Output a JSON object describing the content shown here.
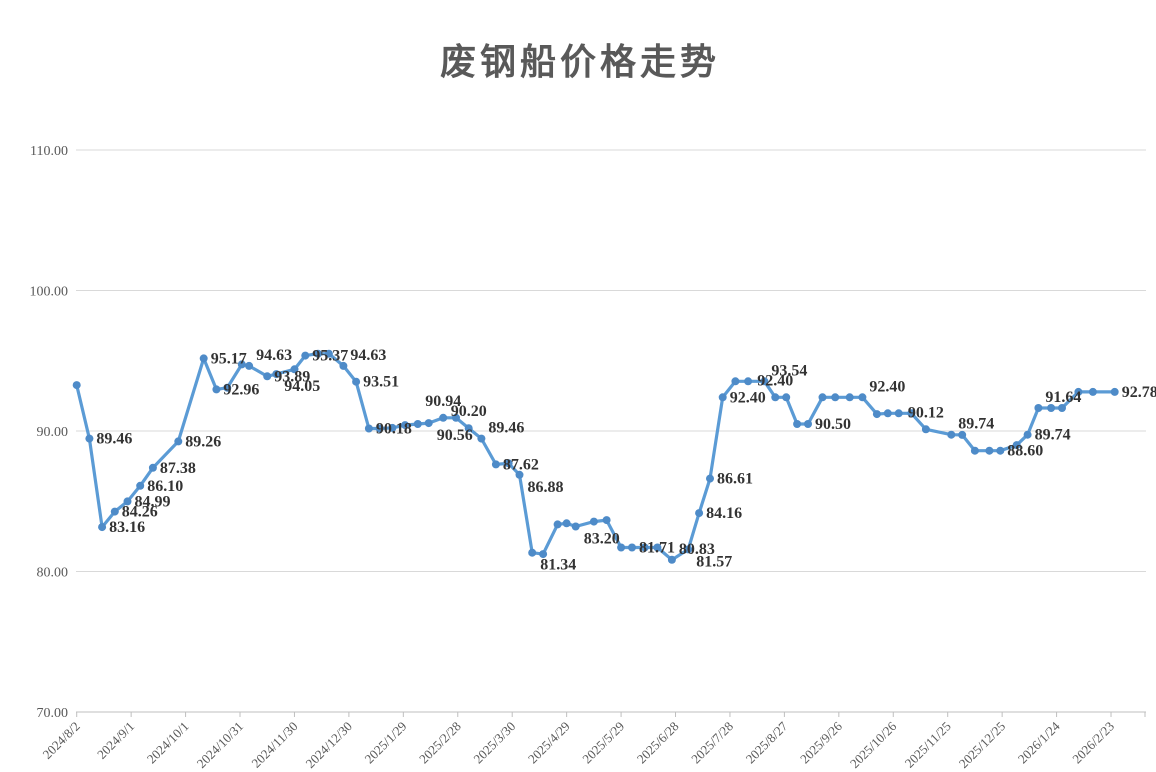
{
  "chart_data": {
    "type": "line",
    "title": "废钢船价格走势",
    "colors": {
      "line": "#5B9BD5",
      "marker": "#4E8BC8",
      "data_label": "#333333",
      "grid": "#D9D9D9",
      "axis_line": "#BFBFBF",
      "axis_text": "#595959",
      "title_text": "#595959"
    },
    "y_axis": {
      "min": 70,
      "max": 110,
      "step": 10,
      "tick_labels": [
        "110.00",
        "100.00",
        "90.00",
        "80.00",
        "70.00"
      ],
      "grid": true
    },
    "x_axis": {
      "tick_interval_days": 30,
      "tick_labels": [
        "2024/8/2",
        "2024/9/1",
        "2024/10/1",
        "2024/10/31",
        "2024/11/30",
        "2024/12/30",
        "2025/1/29",
        "2025/2/28",
        "2025/3/30",
        "2025/4/29",
        "2025/5/29",
        "2025/6/28",
        "2025/7/28",
        "2025/8/27",
        "2025/9/26",
        "2025/10/26",
        "2025/11/25",
        "2025/12/25",
        "2026/1/24",
        "2026/2/23"
      ]
    },
    "legend": "none",
    "series": [
      {
        "points": [
          {
            "d": 0,
            "v": 93.27
          },
          {
            "d": 7,
            "v": 89.46,
            "l": "89.46",
            "p": "r"
          },
          {
            "d": 14,
            "v": 83.16,
            "l": "83.16",
            "p": "r"
          },
          {
            "d": 21,
            "v": 84.26,
            "l": "84.26",
            "p": "r"
          },
          {
            "d": 28,
            "v": 84.99,
            "l": "84.99",
            "p": "r"
          },
          {
            "d": 35,
            "v": 86.1,
            "l": "86.10",
            "p": "r"
          },
          {
            "d": 42,
            "v": 87.38,
            "l": "87.38",
            "p": "r"
          },
          {
            "d": 56,
            "v": 89.26,
            "l": "89.26",
            "p": "r"
          },
          {
            "d": 70,
            "v": 95.17,
            "l": "95.17",
            "p": "r"
          },
          {
            "d": 77,
            "v": 92.96,
            "l": "92.96",
            "p": "r"
          },
          {
            "d": 83,
            "v": 93.08
          },
          {
            "d": 91,
            "v": 94.74
          },
          {
            "d": 95,
            "v": 94.63,
            "l": "94.63",
            "p": "ar"
          },
          {
            "d": 105,
            "v": 93.89,
            "l": "93.89",
            "p": "r"
          },
          {
            "d": 110,
            "v": 94.05,
            "l": "94.05",
            "p": "br"
          },
          {
            "d": 120,
            "v": 94.39
          },
          {
            "d": 126,
            "v": 95.37,
            "l": "95.37",
            "p": "r"
          },
          {
            "d": 133,
            "v": 95.5
          },
          {
            "d": 139,
            "v": 95.5
          },
          {
            "d": 147,
            "v": 94.63,
            "l": "94.63",
            "p": "ar"
          },
          {
            "d": 154,
            "v": 93.51,
            "l": "93.51",
            "p": "r"
          },
          {
            "d": 161,
            "v": 90.18,
            "l": "90.18",
            "p": "r"
          },
          {
            "d": 167,
            "v": 90.18
          },
          {
            "d": 174,
            "v": 90.22
          },
          {
            "d": 181,
            "v": 90.42
          },
          {
            "d": 188,
            "v": 90.5
          },
          {
            "d": 194,
            "v": 90.56,
            "l": "90.56",
            "p": "br"
          },
          {
            "d": 202,
            "v": 90.94,
            "l": "90.94",
            "p": "a"
          },
          {
            "d": 209,
            "v": 90.94
          },
          {
            "d": 216,
            "v": 90.2,
            "l": "90.20",
            "p": "a"
          },
          {
            "d": 223,
            "v": 89.46,
            "l": "89.46",
            "p": "ar"
          },
          {
            "d": 231,
            "v": 87.62,
            "l": "87.62",
            "p": "r"
          },
          {
            "d": 238,
            "v": 87.7
          },
          {
            "d": 244,
            "v": 86.88,
            "l": "86.88",
            "p": "br"
          },
          {
            "d": 251,
            "v": 81.34,
            "l": "81.34",
            "p": "br"
          },
          {
            "d": 257,
            "v": 81.24
          },
          {
            "d": 265,
            "v": 83.35
          },
          {
            "d": 270,
            "v": 83.43
          },
          {
            "d": 275,
            "v": 83.2,
            "l": "83.20",
            "p": "br"
          },
          {
            "d": 285,
            "v": 83.55
          },
          {
            "d": 292,
            "v": 83.66
          },
          {
            "d": 300,
            "v": 81.71
          },
          {
            "d": 306,
            "v": 81.71,
            "l": "81.71",
            "p": "r"
          },
          {
            "d": 313,
            "v": 81.71
          },
          {
            "d": 320,
            "v": 81.71
          },
          {
            "d": 328,
            "v": 80.83,
            "l": "80.83",
            "p": "ar"
          },
          {
            "d": 337,
            "v": 81.57,
            "l": "81.57",
            "p": "br"
          },
          {
            "d": 343,
            "v": 84.16,
            "l": "84.16",
            "p": "r"
          },
          {
            "d": 349,
            "v": 86.61,
            "l": "86.61",
            "p": "r"
          },
          {
            "d": 356,
            "v": 92.4,
            "l": "92.40",
            "p": "r"
          },
          {
            "d": 363,
            "v": 93.54
          },
          {
            "d": 370,
            "v": 93.54
          },
          {
            "d": 379,
            "v": 93.54,
            "l": "93.54",
            "p": "ar"
          },
          {
            "d": 385,
            "v": 92.4,
            "l": "92.40",
            "p": "a"
          },
          {
            "d": 391,
            "v": 92.4
          },
          {
            "d": 397,
            "v": 90.5
          },
          {
            "d": 403,
            "v": 90.5,
            "l": "90.50",
            "p": "r"
          },
          {
            "d": 411,
            "v": 92.4
          },
          {
            "d": 418,
            "v": 92.4
          },
          {
            "d": 426,
            "v": 92.4
          },
          {
            "d": 433,
            "v": 92.4,
            "l": "92.40",
            "p": "ar"
          },
          {
            "d": 441,
            "v": 91.2
          },
          {
            "d": 447,
            "v": 91.26
          },
          {
            "d": 453,
            "v": 91.26
          },
          {
            "d": 460,
            "v": 91.26
          },
          {
            "d": 468,
            "v": 90.12,
            "l": "90.12",
            "p": "a"
          },
          {
            "d": 482,
            "v": 89.74,
            "l": "89.74",
            "p": "ar"
          },
          {
            "d": 488,
            "v": 89.72
          },
          {
            "d": 495,
            "v": 88.6
          },
          {
            "d": 503,
            "v": 88.6
          },
          {
            "d": 509,
            "v": 88.6,
            "l": "88.60",
            "p": "r"
          },
          {
            "d": 518,
            "v": 89.0
          },
          {
            "d": 524,
            "v": 89.74,
            "l": "89.74",
            "p": "r"
          },
          {
            "d": 530,
            "v": 91.64,
            "l": "91.64",
            "p": "ar"
          },
          {
            "d": 537,
            "v": 91.64
          },
          {
            "d": 543,
            "v": 91.64
          },
          {
            "d": 552,
            "v": 92.78
          },
          {
            "d": 560,
            "v": 92.78
          },
          {
            "d": 572,
            "v": 92.78,
            "l": "92.78",
            "p": "r"
          }
        ]
      }
    ]
  }
}
